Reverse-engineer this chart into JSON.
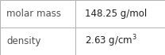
{
  "rows": [
    {
      "label": "molar mass",
      "value": "148.25 g/mol",
      "has_super": false
    },
    {
      "label": "density",
      "value": "2.63 g/cm",
      "has_super": true
    }
  ],
  "density_superscript": "3",
  "bg_color": "#ffffff",
  "border_color": "#b0b0b0",
  "label_color": "#505050",
  "value_color": "#202020",
  "font_size": 8.5,
  "super_font_size": 5.5,
  "col_split": 0.455,
  "figsize": [
    2.08,
    0.7
  ],
  "dpi": 100
}
